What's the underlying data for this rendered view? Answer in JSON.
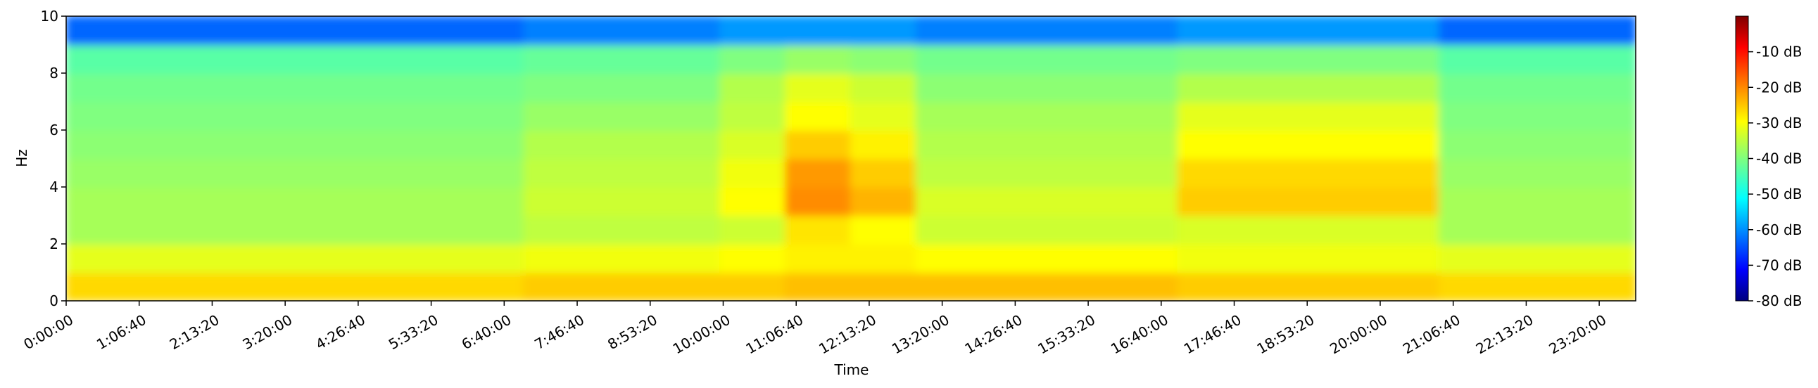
{
  "chart_data": {
    "type": "spectrogram",
    "xlabel": "Time",
    "ylabel": "Hz",
    "xlim": [
      0,
      86000
    ],
    "ylim": [
      0,
      10
    ],
    "xticks": [
      {
        "value": 0,
        "label": "0:00:00"
      },
      {
        "value": 4000,
        "label": "1:06:40"
      },
      {
        "value": 8000,
        "label": "2:13:20"
      },
      {
        "value": 12000,
        "label": "3:20:00"
      },
      {
        "value": 16000,
        "label": "4:26:40"
      },
      {
        "value": 20000,
        "label": "5:33:20"
      },
      {
        "value": 24000,
        "label": "6:40:00"
      },
      {
        "value": 28000,
        "label": "7:46:40"
      },
      {
        "value": 32000,
        "label": "8:53:20"
      },
      {
        "value": 36000,
        "label": "10:00:00"
      },
      {
        "value": 40000,
        "label": "11:06:40"
      },
      {
        "value": 44000,
        "label": "12:13:20"
      },
      {
        "value": 48000,
        "label": "13:20:00"
      },
      {
        "value": 52000,
        "label": "14:26:40"
      },
      {
        "value": 56000,
        "label": "15:33:20"
      },
      {
        "value": 60000,
        "label": "16:40:00"
      },
      {
        "value": 64000,
        "label": "17:46:40"
      },
      {
        "value": 68000,
        "label": "18:53:20"
      },
      {
        "value": 72000,
        "label": "20:00:00"
      },
      {
        "value": 76000,
        "label": "21:06:40"
      },
      {
        "value": 80000,
        "label": "22:13:20"
      },
      {
        "value": 84000,
        "label": "23:20:00"
      }
    ],
    "yticks": [
      0,
      2,
      4,
      6,
      8,
      10
    ],
    "colormap": "jet",
    "clim": [
      -80,
      0
    ],
    "cticks": [
      {
        "value": -10,
        "label": "-10 dB"
      },
      {
        "value": -20,
        "label": "-20 dB"
      },
      {
        "value": -30,
        "label": "-30 dB"
      },
      {
        "value": -40,
        "label": "-40 dB"
      },
      {
        "value": -50,
        "label": "-50 dB"
      },
      {
        "value": -60,
        "label": "-60 dB"
      },
      {
        "value": -70,
        "label": "-70 dB"
      },
      {
        "value": -80,
        "label": "-80 dB"
      }
    ],
    "z": [
      [
        -27,
        -32,
        -37,
        -37,
        -38,
        -39,
        -40,
        -41,
        -43,
        -62
      ],
      [
        -27,
        -32,
        -37,
        -37,
        -38,
        -39,
        -40,
        -41,
        -43,
        -62
      ],
      [
        -27,
        -32,
        -37,
        -37,
        -38,
        -39,
        -40,
        -41,
        -43,
        -62
      ],
      [
        -27,
        -32,
        -37,
        -37,
        -38,
        -39,
        -40,
        -41,
        -43,
        -62
      ],
      [
        -27,
        -32,
        -37,
        -37,
        -38,
        -39,
        -40,
        -41,
        -43,
        -62
      ],
      [
        -27,
        -32,
        -37,
        -37,
        -38,
        -39,
        -40,
        -41,
        -43,
        -62
      ],
      [
        -27,
        -32,
        -37,
        -37,
        -38,
        -39,
        -40,
        -41,
        -43,
        -62
      ],
      [
        -26,
        -31,
        -35,
        -34,
        -35,
        -36,
        -38,
        -40,
        -42,
        -60
      ],
      [
        -26,
        -31,
        -35,
        -34,
        -35,
        -36,
        -38,
        -40,
        -42,
        -60
      ],
      [
        -26,
        -31,
        -35,
        -34,
        -35,
        -36,
        -38,
        -40,
        -42,
        -60
      ],
      [
        -26,
        -30,
        -34,
        -30,
        -31,
        -33,
        -35,
        -36,
        -40,
        -58
      ],
      [
        -25,
        -29,
        -28,
        -21,
        -22,
        -26,
        -30,
        -32,
        -38,
        -58
      ],
      [
        -25,
        -29,
        -30,
        -24,
        -26,
        -29,
        -32,
        -34,
        -39,
        -58
      ],
      [
        -25,
        -30,
        -34,
        -33,
        -35,
        -36,
        -37,
        -39,
        -41,
        -60
      ],
      [
        -25,
        -30,
        -34,
        -33,
        -35,
        -36,
        -37,
        -39,
        -41,
        -60
      ],
      [
        -25,
        -30,
        -34,
        -33,
        -35,
        -36,
        -37,
        -39,
        -41,
        -60
      ],
      [
        -25,
        -30,
        -34,
        -33,
        -35,
        -36,
        -37,
        -39,
        -41,
        -60
      ],
      [
        -26,
        -31,
        -33,
        -26,
        -27,
        -30,
        -32,
        -36,
        -40,
        -58
      ],
      [
        -26,
        -31,
        -33,
        -26,
        -27,
        -30,
        -32,
        -36,
        -40,
        -58
      ],
      [
        -26,
        -31,
        -33,
        -26,
        -27,
        -30,
        -32,
        -36,
        -40,
        -58
      ],
      [
        -26,
        -31,
        -33,
        -26,
        -27,
        -30,
        -32,
        -36,
        -40,
        -58
      ],
      [
        -27,
        -32,
        -37,
        -37,
        -38,
        -39,
        -40,
        -41,
        -43,
        -62
      ],
      [
        -27,
        -32,
        -37,
        -37,
        -38,
        -39,
        -40,
        -41,
        -43,
        -62
      ],
      [
        -27,
        -32,
        -37,
        -37,
        -38,
        -39,
        -40,
        -41,
        -43,
        -62
      ]
    ]
  }
}
